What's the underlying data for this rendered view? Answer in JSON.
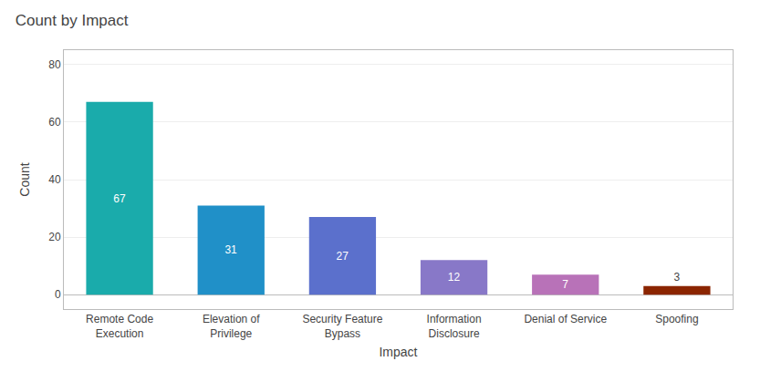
{
  "chart_data": {
    "type": "bar",
    "title": "Count by Impact",
    "categories": [
      "Remote Code\nExecution",
      "Elevation of\nPrivilege",
      "Security Feature\nBypass",
      "Information\nDisclosure",
      "Denial of Service",
      "Spoofing"
    ],
    "values": [
      67,
      31,
      27,
      12,
      7,
      3
    ],
    "colors": [
      "#1aabab",
      "#2090c8",
      "#5b70cc",
      "#8878c8",
      "#b872b8",
      "#8b2500"
    ],
    "xlabel": "Impact",
    "ylabel": "Count",
    "ylim": [
      -5,
      85
    ],
    "yticks": [
      0,
      20,
      40,
      60,
      80
    ],
    "grid": true,
    "data_labels": true
  }
}
